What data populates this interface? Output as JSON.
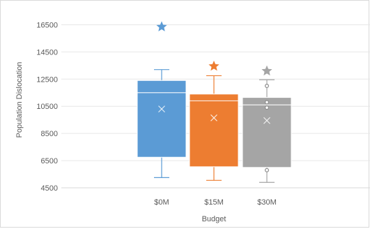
{
  "chart_data": {
    "type": "boxplot",
    "title": "",
    "xlabel": "Budget",
    "ylabel": "Population Dislocation",
    "ylim": [
      4500,
      17500
    ],
    "yticks": [
      4500,
      6500,
      8500,
      10500,
      12500,
      14500,
      16500
    ],
    "ytick_labels": [
      "4500",
      "6500",
      "8500",
      "10500",
      "12500",
      "14500",
      "16500"
    ],
    "categories": [
      "$0M",
      "$15M",
      "$30M"
    ],
    "grid": "horizontal",
    "legend": "none",
    "series": [
      {
        "category": "$0M",
        "color": "#5b9bd5",
        "min": 5250,
        "q1": 6750,
        "median": 11500,
        "q3": 12400,
        "max": 13200,
        "mean": 10300,
        "outliers": [],
        "marker_star": 16350
      },
      {
        "category": "$15M",
        "color": "#ed7d31",
        "min": 5050,
        "q1": 6050,
        "median": 10900,
        "q3": 11400,
        "max": 12750,
        "mean": 9650,
        "outliers": [],
        "marker_star": 13450
      },
      {
        "category": "$30M",
        "color": "#a5a5a5",
        "min": 4900,
        "q1": 6000,
        "median": 10600,
        "q3": 11150,
        "max": 12450,
        "mean": 9450,
        "outliers": [
          5800,
          10400,
          10800,
          12000
        ],
        "marker_star": 13100
      }
    ]
  }
}
